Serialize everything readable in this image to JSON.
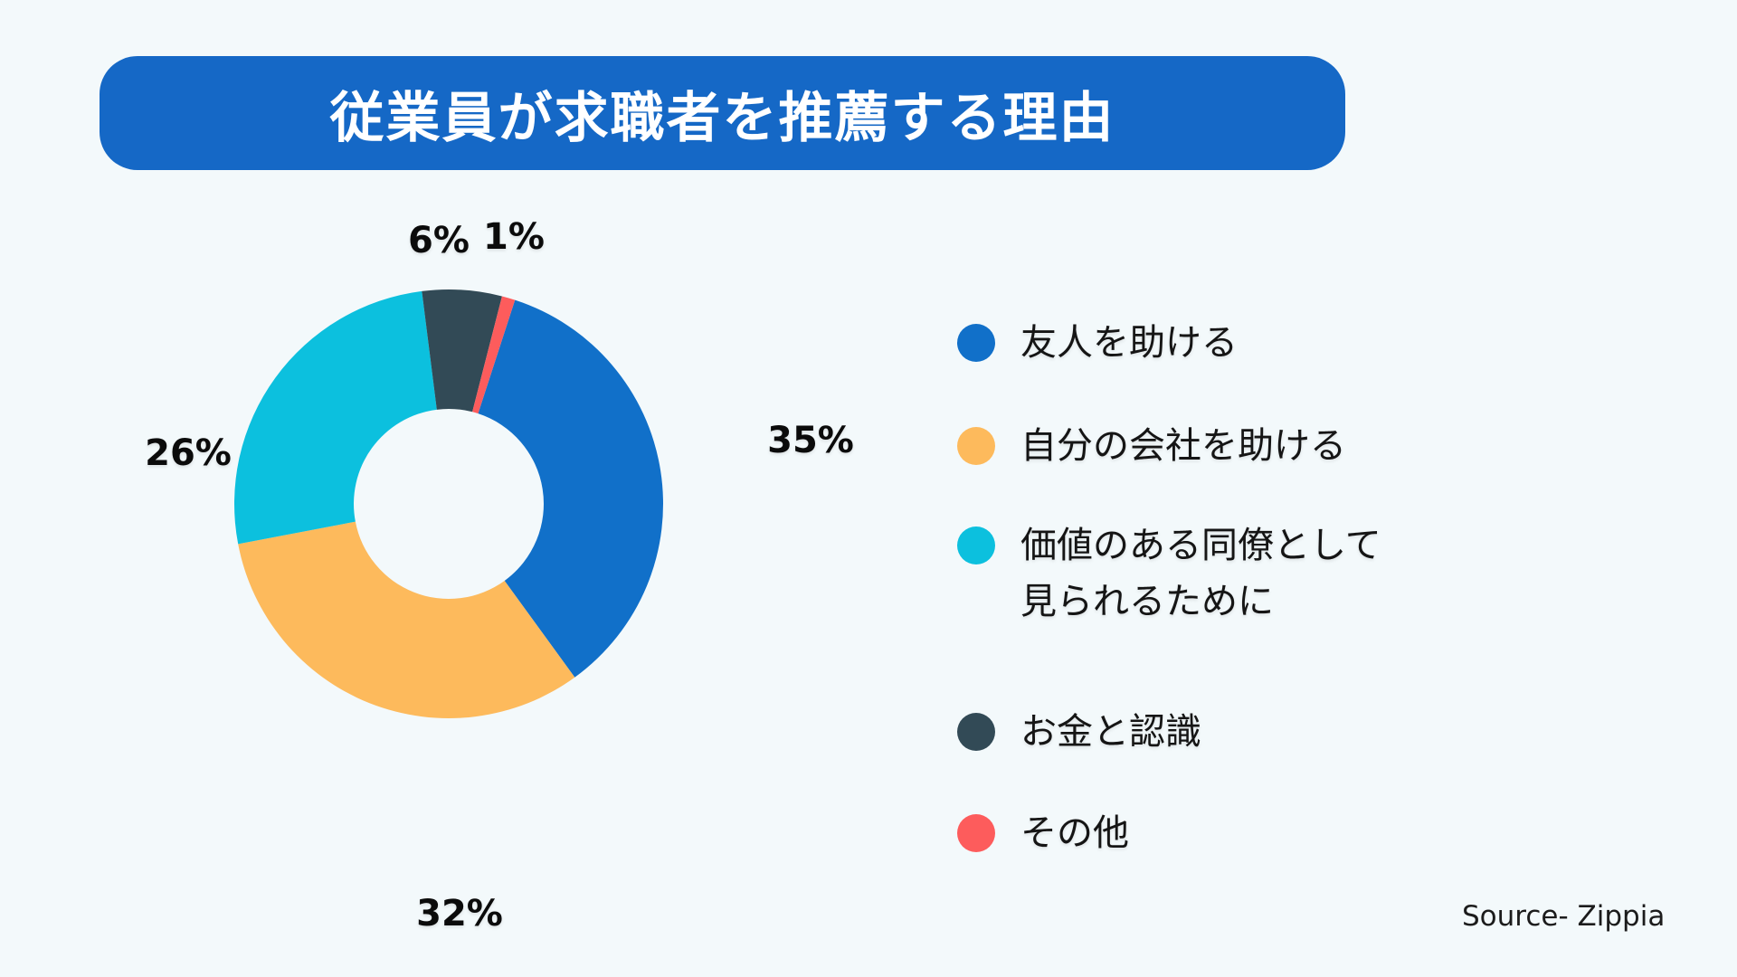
{
  "title": {
    "text": "従業員が求職者を推薦する理由"
  },
  "source": {
    "text": "Source- Zippia"
  },
  "colors": {
    "background": "#F3F9FB",
    "banner": "#1568C6",
    "title_text": "#FFFFFF",
    "label_text": "#0B0B0B"
  },
  "chart_data": {
    "type": "pie",
    "subtype": "donut",
    "title": "従業員が求職者を推薦する理由",
    "legend_position": "right",
    "clockwise": true,
    "start_angle_deg": 18,
    "inner_radius_ratio": 0.443,
    "segments": [
      {
        "label": "友人を助ける",
        "value": 35,
        "pct_label": "35%",
        "color": "#1170C9"
      },
      {
        "label": "自分の会社を助ける",
        "value": 32,
        "pct_label": "32%",
        "color": "#FDBA5C"
      },
      {
        "label": "価値のある同僚として\n見られるために",
        "value": 26,
        "pct_label": "26%",
        "color": "#0CC0DE"
      },
      {
        "label": "お金と認識",
        "value": 6,
        "pct_label": "6%",
        "color": "#324A56"
      },
      {
        "label": "その他",
        "value": 1,
        "pct_label": "1%",
        "color": "#FD5C5C"
      }
    ]
  }
}
